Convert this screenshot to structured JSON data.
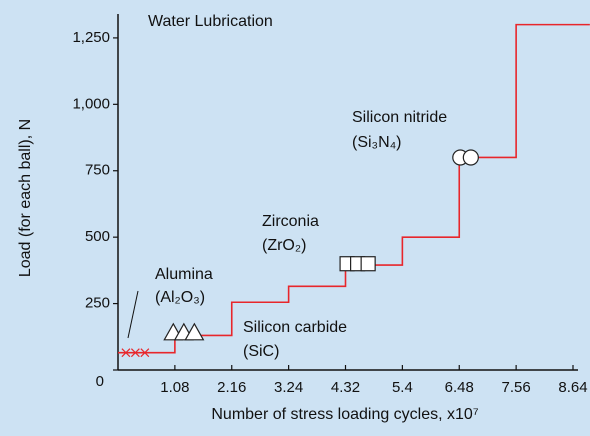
{
  "chart_data": {
    "type": "step",
    "annotations": [
      "Water Lubrication",
      "Alumina",
      "(Al₂O₃)",
      "Silicon carbide",
      "(SiC)",
      "Zirconia",
      "(ZrO₂)",
      "Silicon nitride",
      "(Si₃N₄)"
    ],
    "xlabel": "Number of stress loading cycles, x10⁷",
    "ylabel": "Load (for each ball), N",
    "series": [
      {
        "color": "#e8262b",
        "x": [
          0,
          1.08,
          2.16,
          3.24,
          4.32,
          5.4,
          6.48,
          7.56,
          8.96
        ],
        "values": [
          65,
          130,
          255,
          315,
          395,
          500,
          800,
          1300,
          1300
        ]
      }
    ],
    "markers": [
      {
        "shape": "x",
        "x": [
          0.15,
          0.33,
          0.51
        ],
        "values": [
          65,
          65,
          65
        ]
      },
      {
        "shape": "triangle",
        "x": [
          1.05,
          1.25,
          1.45
        ],
        "values": [
          140,
          140,
          140
        ]
      },
      {
        "shape": "square",
        "x": [
          4.35,
          4.55,
          4.75
        ],
        "values": [
          400,
          400,
          400
        ]
      },
      {
        "shape": "circle",
        "x": [
          6.5,
          6.7
        ],
        "values": [
          800,
          800
        ]
      }
    ],
    "xlim": [
      0,
      8.64
    ],
    "ylim": [
      0,
      1340
    ],
    "xticks": [
      1.08,
      2.16,
      3.24,
      4.32,
      5.4,
      6.48,
      7.56,
      8.64
    ],
    "yticks": [
      0,
      250,
      500,
      750,
      {
        "value": 1000,
        "label": "1,000"
      },
      {
        "value": 1250,
        "label": "1,250"
      }
    ],
    "background": "#cde2f3"
  }
}
